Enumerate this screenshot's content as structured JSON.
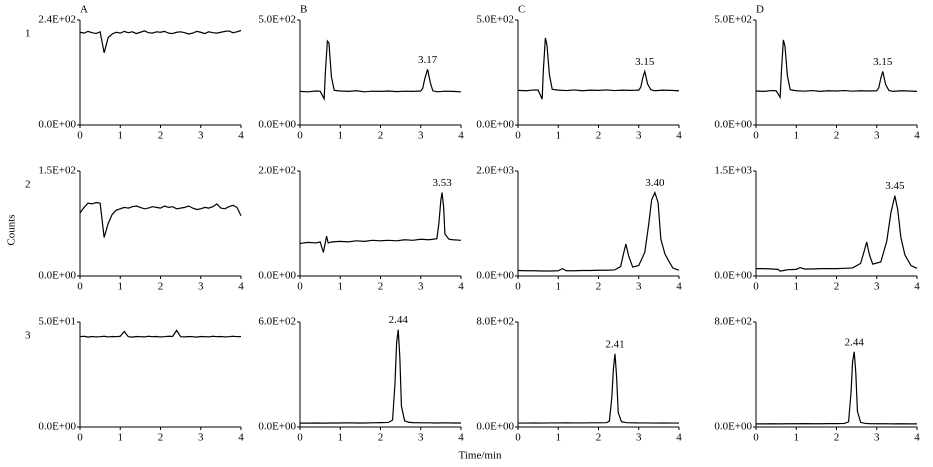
{
  "figure": {
    "column_labels": [
      "A",
      "B",
      "C",
      "D"
    ],
    "row_labels": [
      "1",
      "2",
      "3"
    ],
    "y_label": "Counts",
    "x_label": "Time/min"
  },
  "chart_data": [
    {
      "type": "line",
      "color": "#000000",
      "xlim": [
        0,
        4
      ],
      "xticks": [
        0,
        1,
        2,
        3,
        4
      ],
      "ylim": [
        0,
        240
      ],
      "yticks": [
        {
          "value": 0,
          "label": "0.0E+00"
        },
        {
          "value": 240,
          "label": "2.4E+02"
        }
      ],
      "x": [
        0,
        0.1,
        0.2,
        0.3,
        0.4,
        0.5,
        0.6,
        0.7,
        0.8,
        0.9,
        1,
        1.1,
        1.2,
        1.3,
        1.4,
        1.5,
        1.6,
        1.7,
        1.8,
        1.9,
        2,
        2.1,
        2.2,
        2.3,
        2.4,
        2.5,
        2.6,
        2.7,
        2.8,
        2.9,
        3,
        3.1,
        3.2,
        3.3,
        3.4,
        3.5,
        3.6,
        3.7,
        3.8,
        3.9,
        4
      ],
      "values": [
        212,
        210,
        214,
        211,
        209,
        213,
        165,
        200,
        208,
        212,
        210,
        214,
        211,
        213,
        209,
        212,
        215,
        211,
        210,
        213,
        212,
        214,
        210,
        209,
        212,
        213,
        211,
        208,
        210,
        214,
        212,
        209,
        213,
        211,
        210,
        212,
        214,
        215,
        211,
        213,
        216
      ]
    },
    {
      "type": "line",
      "color": "#000000",
      "xlim": [
        0,
        4
      ],
      "xticks": [
        0,
        1,
        2,
        3,
        4
      ],
      "ylim": [
        0,
        500
      ],
      "yticks": [
        {
          "value": 0,
          "label": "0.0E+00"
        },
        {
          "value": 500,
          "label": "5.0E+02"
        }
      ],
      "x": [
        0,
        0.2,
        0.4,
        0.5,
        0.6,
        0.63,
        0.68,
        0.72,
        0.78,
        0.85,
        1,
        1.2,
        1.4,
        1.6,
        1.8,
        2,
        2.2,
        2.4,
        2.6,
        2.8,
        3,
        3.05,
        3.1,
        3.17,
        3.24,
        3.3,
        3.4,
        3.6,
        3.8,
        4
      ],
      "values": [
        160,
        158,
        162,
        161,
        125,
        250,
        400,
        390,
        230,
        165,
        162,
        160,
        163,
        158,
        161,
        160,
        162,
        159,
        161,
        160,
        162,
        175,
        220,
        265,
        200,
        163,
        158,
        161,
        160,
        158
      ],
      "peak_labels": [
        3.17
      ]
    },
    {
      "type": "line",
      "color": "#000000",
      "xlim": [
        0,
        4
      ],
      "xticks": [
        0,
        1,
        2,
        3,
        4
      ],
      "ylim": [
        0,
        500
      ],
      "yticks": [
        {
          "value": 0,
          "label": "0.0E+00"
        },
        {
          "value": 500,
          "label": "5.0E+02"
        }
      ],
      "x": [
        0,
        0.2,
        0.4,
        0.5,
        0.6,
        0.63,
        0.68,
        0.72,
        0.78,
        0.85,
        1,
        1.2,
        1.4,
        1.6,
        1.8,
        2,
        2.2,
        2.4,
        2.6,
        2.8,
        3,
        3.05,
        3.1,
        3.15,
        3.22,
        3.3,
        3.4,
        3.6,
        3.8,
        4
      ],
      "values": [
        165,
        163,
        167,
        166,
        123,
        260,
        415,
        380,
        240,
        170,
        166,
        164,
        167,
        163,
        166,
        165,
        167,
        164,
        166,
        165,
        166,
        180,
        225,
        255,
        195,
        168,
        163,
        166,
        165,
        163
      ],
      "peak_labels": [
        3.15
      ]
    },
    {
      "type": "line",
      "color": "#000000",
      "xlim": [
        0,
        4
      ],
      "xticks": [
        0,
        1,
        2,
        3,
        4
      ],
      "ylim": [
        0,
        500
      ],
      "yticks": [
        {
          "value": 0,
          "label": "0.0E+00"
        },
        {
          "value": 500,
          "label": "5.0E+02"
        }
      ],
      "x": [
        0,
        0.2,
        0.4,
        0.5,
        0.6,
        0.63,
        0.68,
        0.72,
        0.78,
        0.85,
        1,
        1.2,
        1.4,
        1.6,
        1.8,
        2,
        2.2,
        2.4,
        2.6,
        2.8,
        3,
        3.05,
        3.1,
        3.15,
        3.22,
        3.3,
        3.4,
        3.6,
        3.8,
        4
      ],
      "values": [
        162,
        160,
        164,
        163,
        132,
        250,
        405,
        375,
        235,
        168,
        163,
        161,
        164,
        160,
        163,
        162,
        164,
        161,
        163,
        162,
        163,
        178,
        222,
        255,
        193,
        165,
        160,
        163,
        162,
        160
      ],
      "peak_labels": [
        3.15
      ]
    },
    {
      "type": "line",
      "color": "#000000",
      "xlim": [
        0,
        4
      ],
      "xticks": [
        0,
        1,
        2,
        3,
        4
      ],
      "ylim": [
        0,
        150
      ],
      "yticks": [
        {
          "value": 0,
          "label": "0.0E+00"
        },
        {
          "value": 150,
          "label": "1.5E+02"
        }
      ],
      "x": [
        0,
        0.1,
        0.2,
        0.3,
        0.4,
        0.5,
        0.6,
        0.7,
        0.8,
        0.9,
        1,
        1.1,
        1.2,
        1.3,
        1.4,
        1.5,
        1.6,
        1.7,
        1.8,
        1.9,
        2,
        2.1,
        2.2,
        2.3,
        2.4,
        2.5,
        2.6,
        2.7,
        2.8,
        2.9,
        3,
        3.1,
        3.2,
        3.3,
        3.4,
        3.5,
        3.6,
        3.7,
        3.8,
        3.9,
        4
      ],
      "values": [
        90,
        98,
        104,
        103,
        105,
        104,
        55,
        75,
        88,
        94,
        96,
        98,
        97,
        99,
        100,
        98,
        96,
        97,
        99,
        98,
        97,
        100,
        98,
        99,
        96,
        97,
        98,
        100,
        97,
        95,
        96,
        98,
        97,
        99,
        103,
        97,
        96,
        99,
        101,
        98,
        86
      ]
    },
    {
      "type": "line",
      "color": "#000000",
      "xlim": [
        0,
        4
      ],
      "xticks": [
        0,
        1,
        2,
        3,
        4
      ],
      "ylim": [
        0,
        200
      ],
      "yticks": [
        {
          "value": 0,
          "label": "0.0E+00"
        },
        {
          "value": 200,
          "label": "2.0E+02"
        }
      ],
      "x": [
        0,
        0.2,
        0.4,
        0.5,
        0.58,
        0.62,
        0.66,
        0.7,
        0.8,
        1,
        1.2,
        1.4,
        1.6,
        1.8,
        2,
        2.2,
        2.4,
        2.6,
        2.8,
        3,
        3.2,
        3.4,
        3.45,
        3.5,
        3.53,
        3.57,
        3.6,
        3.7,
        3.8,
        4
      ],
      "values": [
        62,
        64,
        63,
        65,
        45,
        60,
        76,
        63,
        65,
        66,
        65,
        67,
        66,
        68,
        67,
        68,
        67,
        69,
        68,
        70,
        69,
        71,
        100,
        145,
        159,
        130,
        80,
        70,
        69,
        68
      ],
      "peak_labels": [
        3.53
      ]
    },
    {
      "type": "line",
      "color": "#000000",
      "xlim": [
        0,
        4
      ],
      "xticks": [
        0,
        1,
        2,
        3,
        4
      ],
      "ylim": [
        0,
        2000
      ],
      "yticks": [
        {
          "value": 0,
          "label": "0.0E+00"
        },
        {
          "value": 2000,
          "label": "2.0E+03"
        }
      ],
      "x": [
        0,
        0.2,
        0.4,
        0.6,
        0.8,
        1,
        1.1,
        1.2,
        1.4,
        1.6,
        1.8,
        2,
        2.2,
        2.4,
        2.55,
        2.62,
        2.68,
        2.75,
        2.85,
        3,
        3.15,
        3.25,
        3.32,
        3.4,
        3.48,
        3.55,
        3.65,
        3.75,
        3.85,
        4
      ],
      "values": [
        105,
        100,
        100,
        95,
        95,
        100,
        140,
        100,
        100,
        105,
        105,
        110,
        110,
        115,
        180,
        420,
        610,
        380,
        170,
        200,
        450,
        1000,
        1450,
        1590,
        1400,
        700,
        420,
        280,
        150,
        110
      ],
      "peak_labels": [
        {
          "value": 3.4,
          "label": "3.40"
        }
      ]
    },
    {
      "type": "line",
      "color": "#000000",
      "xlim": [
        0,
        4
      ],
      "xticks": [
        0,
        1,
        2,
        3,
        4
      ],
      "ylim": [
        0,
        1500
      ],
      "yticks": [
        {
          "value": 0,
          "label": "0.0E+00"
        },
        {
          "value": 1500,
          "label": "1.5E+03"
        }
      ],
      "x": [
        0,
        0.2,
        0.4,
        0.55,
        0.6,
        0.7,
        0.8,
        1,
        1.1,
        1.2,
        1.4,
        1.6,
        1.8,
        2,
        2.2,
        2.4,
        2.6,
        2.7,
        2.75,
        2.82,
        2.9,
        3.1,
        3.25,
        3.35,
        3.45,
        3.52,
        3.6,
        3.7,
        3.85,
        4
      ],
      "values": [
        105,
        105,
        100,
        95,
        70,
        80,
        90,
        95,
        120,
        100,
        100,
        105,
        105,
        105,
        110,
        115,
        180,
        380,
        485,
        300,
        170,
        200,
        500,
        900,
        1147,
        950,
        550,
        300,
        150,
        110
      ],
      "peak_labels": [
        3.45
      ]
    },
    {
      "type": "line",
      "color": "#000000",
      "xlim": [
        0,
        4
      ],
      "xticks": [
        0,
        1,
        2,
        3,
        4
      ],
      "ylim": [
        0,
        50
      ],
      "yticks": [
        {
          "value": 0,
          "label": "0.0E+00"
        },
        {
          "value": 50,
          "label": "5.0E+01"
        }
      ],
      "x": [
        0,
        0.1,
        0.2,
        0.3,
        0.4,
        0.5,
        0.6,
        0.7,
        0.8,
        0.9,
        1,
        1.1,
        1.2,
        1.3,
        1.4,
        1.5,
        1.6,
        1.7,
        1.8,
        1.9,
        2,
        2.1,
        2.2,
        2.3,
        2.4,
        2.5,
        2.6,
        2.7,
        2.8,
        2.9,
        3,
        3.1,
        3.2,
        3.3,
        3.4,
        3.5,
        3.6,
        3.7,
        3.8,
        3.9,
        4
      ],
      "values": [
        43,
        43.2,
        42.8,
        43.1,
        42.9,
        43,
        43.2,
        42.9,
        43.1,
        43,
        43.2,
        45.5,
        43,
        42.8,
        43.1,
        43,
        42.9,
        43.2,
        43,
        43.1,
        42.9,
        43,
        43.2,
        43.1,
        46,
        43,
        42.9,
        43.1,
        43,
        42.8,
        43.1,
        43,
        42.9,
        43.2,
        43,
        43.1,
        42.9,
        43,
        43.2,
        43,
        43.1
      ]
    },
    {
      "type": "line",
      "color": "#000000",
      "xlim": [
        0,
        4
      ],
      "xticks": [
        0,
        1,
        2,
        3,
        4
      ],
      "ylim": [
        0,
        600
      ],
      "yticks": [
        {
          "value": 0,
          "label": "0.0E+00"
        },
        {
          "value": 600,
          "label": "6.0E+02"
        }
      ],
      "x": [
        0,
        0.2,
        0.4,
        0.6,
        0.8,
        1,
        1.2,
        1.4,
        1.6,
        1.8,
        2,
        2.2,
        2.3,
        2.36,
        2.4,
        2.44,
        2.48,
        2.52,
        2.6,
        2.7,
        2.8,
        3,
        3.2,
        3.4,
        3.6,
        3.8,
        4
      ],
      "values": [
        22,
        22,
        23,
        22,
        23,
        23,
        24,
        23,
        23,
        24,
        25,
        26,
        40,
        250,
        480,
        556,
        400,
        120,
        35,
        27,
        25,
        24,
        24,
        23,
        24,
        23,
        23
      ],
      "peak_labels": [
        2.44
      ]
    },
    {
      "type": "line",
      "color": "#000000",
      "xlim": [
        0,
        4
      ],
      "xticks": [
        0,
        1,
        2,
        3,
        4
      ],
      "ylim": [
        0,
        800
      ],
      "yticks": [
        {
          "value": 0,
          "label": "0.0E+00"
        },
        {
          "value": 800,
          "label": "8.0E+02"
        }
      ],
      "x": [
        0,
        0.2,
        0.4,
        0.6,
        0.8,
        1,
        1.2,
        1.4,
        1.6,
        1.8,
        2,
        2.2,
        2.27,
        2.33,
        2.37,
        2.41,
        2.45,
        2.49,
        2.57,
        2.7,
        2.8,
        3,
        3.2,
        3.4,
        3.6,
        3.8,
        4
      ],
      "values": [
        30,
        30,
        31,
        30,
        31,
        31,
        32,
        31,
        31,
        32,
        32,
        33,
        45,
        220,
        440,
        558,
        380,
        110,
        40,
        33,
        32,
        31,
        31,
        30,
        31,
        30,
        30
      ],
      "peak_labels": [
        2.41
      ]
    },
    {
      "type": "line",
      "color": "#000000",
      "xlim": [
        0,
        4
      ],
      "xticks": [
        0,
        1,
        2,
        3,
        4
      ],
      "ylim": [
        0,
        800
      ],
      "yticks": [
        {
          "value": 0,
          "label": "0.0E+00"
        },
        {
          "value": 800,
          "label": "8.0E+02"
        }
      ],
      "x": [
        0,
        0.2,
        0.4,
        0.6,
        0.8,
        1,
        1.2,
        1.4,
        1.6,
        1.8,
        2,
        2.2,
        2.3,
        2.36,
        2.4,
        2.44,
        2.48,
        2.52,
        2.6,
        2.7,
        2.8,
        3,
        3.2,
        3.4,
        3.6,
        3.8,
        4
      ],
      "values": [
        24,
        24,
        25,
        24,
        25,
        25,
        26,
        25,
        25,
        26,
        26,
        27,
        40,
        260,
        500,
        573,
        410,
        120,
        35,
        28,
        26,
        25,
        25,
        24,
        25,
        24,
        24
      ],
      "peak_labels": [
        2.44
      ]
    }
  ]
}
